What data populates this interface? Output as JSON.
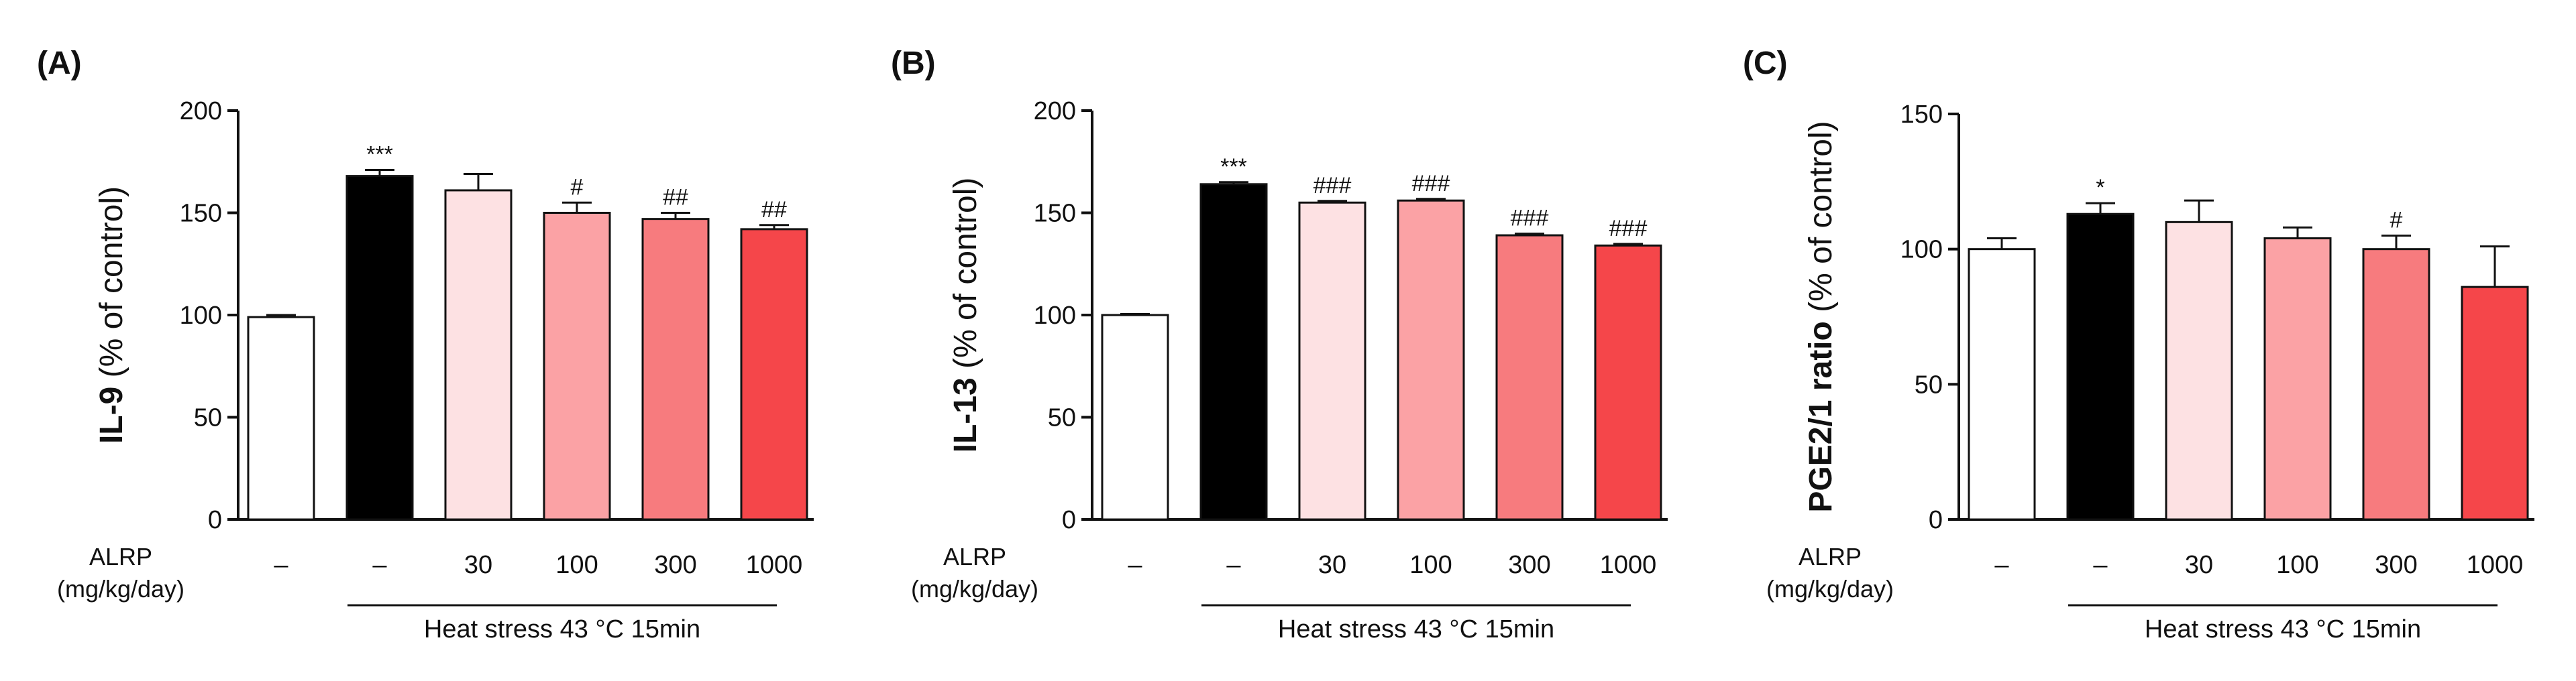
{
  "figure": {
    "treatment_label": "ALRP",
    "treatment_units": "(mg/kg/day)",
    "group_label": "Heat stress 43 °C 15min",
    "colors": [
      "#ffffff",
      "#000000",
      "#fde1e3",
      "#fba2a5",
      "#f77b7e",
      "#f5464a"
    ],
    "edge_color": "#111111"
  },
  "chart_data": [
    {
      "type": "bar",
      "panel": "(A)",
      "ylabel_main": "IL-9",
      "ylabel_rest": " (% of control)",
      "ylim": [
        0,
        200
      ],
      "yticks": [
        0,
        50,
        100,
        150,
        200
      ],
      "categories": [
        "–",
        "–",
        "30",
        "100",
        "300",
        "1000"
      ],
      "values": [
        99,
        168,
        161,
        150,
        147,
        142
      ],
      "errors": [
        1,
        3,
        8,
        5,
        3,
        2
      ],
      "significance": [
        "",
        "***",
        "",
        "#",
        "##",
        "##"
      ]
    },
    {
      "type": "bar",
      "panel": "(B)",
      "ylabel_main": "IL-13",
      "ylabel_rest": " (% of control)",
      "ylim": [
        0,
        200
      ],
      "yticks": [
        0,
        50,
        100,
        150,
        200
      ],
      "categories": [
        "–",
        "–",
        "30",
        "100",
        "300",
        "1000"
      ],
      "values": [
        100,
        164,
        155,
        156,
        139,
        134
      ],
      "errors": [
        0.5,
        1,
        0.8,
        0.8,
        0.8,
        0.8
      ],
      "significance": [
        "",
        "***",
        "###",
        "###",
        "###",
        "###"
      ]
    },
    {
      "type": "bar",
      "panel": "(C)",
      "ylabel_main": "PGE2/1 ratio",
      "ylabel_rest": " (% of control)",
      "ylim": [
        0,
        150
      ],
      "yticks": [
        0,
        50,
        100,
        150
      ],
      "categories": [
        "–",
        "–",
        "30",
        "100",
        "300",
        "1000"
      ],
      "values": [
        100,
        113,
        110,
        104,
        100,
        86
      ],
      "errors": [
        4,
        4,
        8,
        4,
        5,
        15
      ],
      "significance": [
        "",
        "*",
        "",
        "",
        "#",
        ""
      ]
    }
  ]
}
